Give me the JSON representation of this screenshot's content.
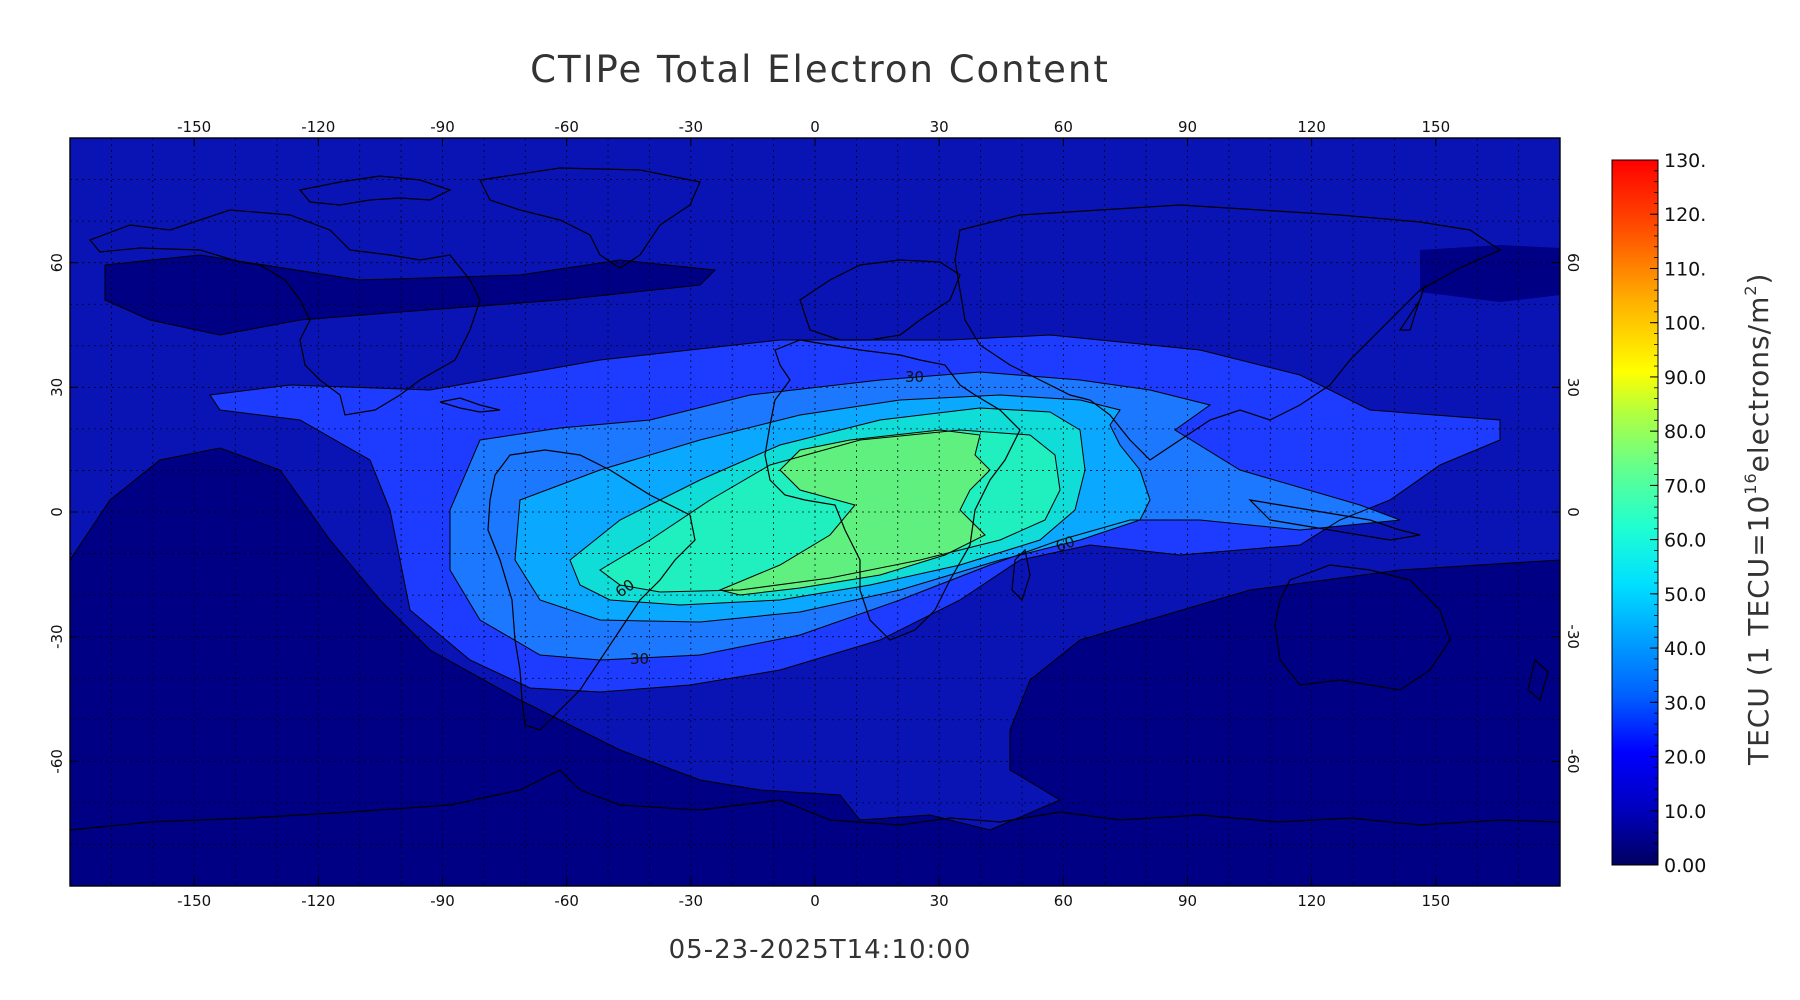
{
  "title": "CTIPe Total Electron Content",
  "timestamp": "05-23-2025T14:10:00",
  "map": {
    "lon_range": [
      -180,
      180
    ],
    "lat_range": [
      -90,
      90
    ],
    "lon_ticks": [
      -150,
      -120,
      -90,
      -60,
      -30,
      0,
      30,
      60,
      90,
      120,
      150
    ],
    "lat_ticks": [
      -60,
      -30,
      0,
      30,
      60
    ],
    "grid": true,
    "background_color": "#0a1fa8",
    "contour_labels": [
      "30",
      "60",
      "60",
      "30"
    ]
  },
  "colorbar": {
    "label_prefix": "TECU (1 TECU=10",
    "label_sup": "16",
    "label_mid": "electrons/m",
    "label_sup2": "2",
    "label_suffix": ")",
    "ticks": [
      "0.00",
      "10.0",
      "20.0",
      "30.0",
      "40.0",
      "50.0",
      "60.0",
      "70.0",
      "80.0",
      "90.0",
      "100.",
      "110.",
      "120.",
      "130."
    ],
    "range": [
      0,
      130
    ],
    "colors": [
      "#000080",
      "#0000ff",
      "#0080ff",
      "#00ffff",
      "#80ff80",
      "#ffff00",
      "#ff8000",
      "#ff0000"
    ]
  },
  "chart_data": {
    "type": "heatmap",
    "title": "CTIPe Total Electron Content",
    "xlabel": "",
    "ylabel": "",
    "xlim": [
      -180,
      180
    ],
    "ylim": [
      -90,
      90
    ],
    "colorbar_label": "TECU (1 TECU=10^16 electrons/m^2)",
    "colorbar_range": [
      0,
      130
    ],
    "levels": [
      10,
      20,
      30,
      40,
      50,
      60,
      70
    ]
  }
}
